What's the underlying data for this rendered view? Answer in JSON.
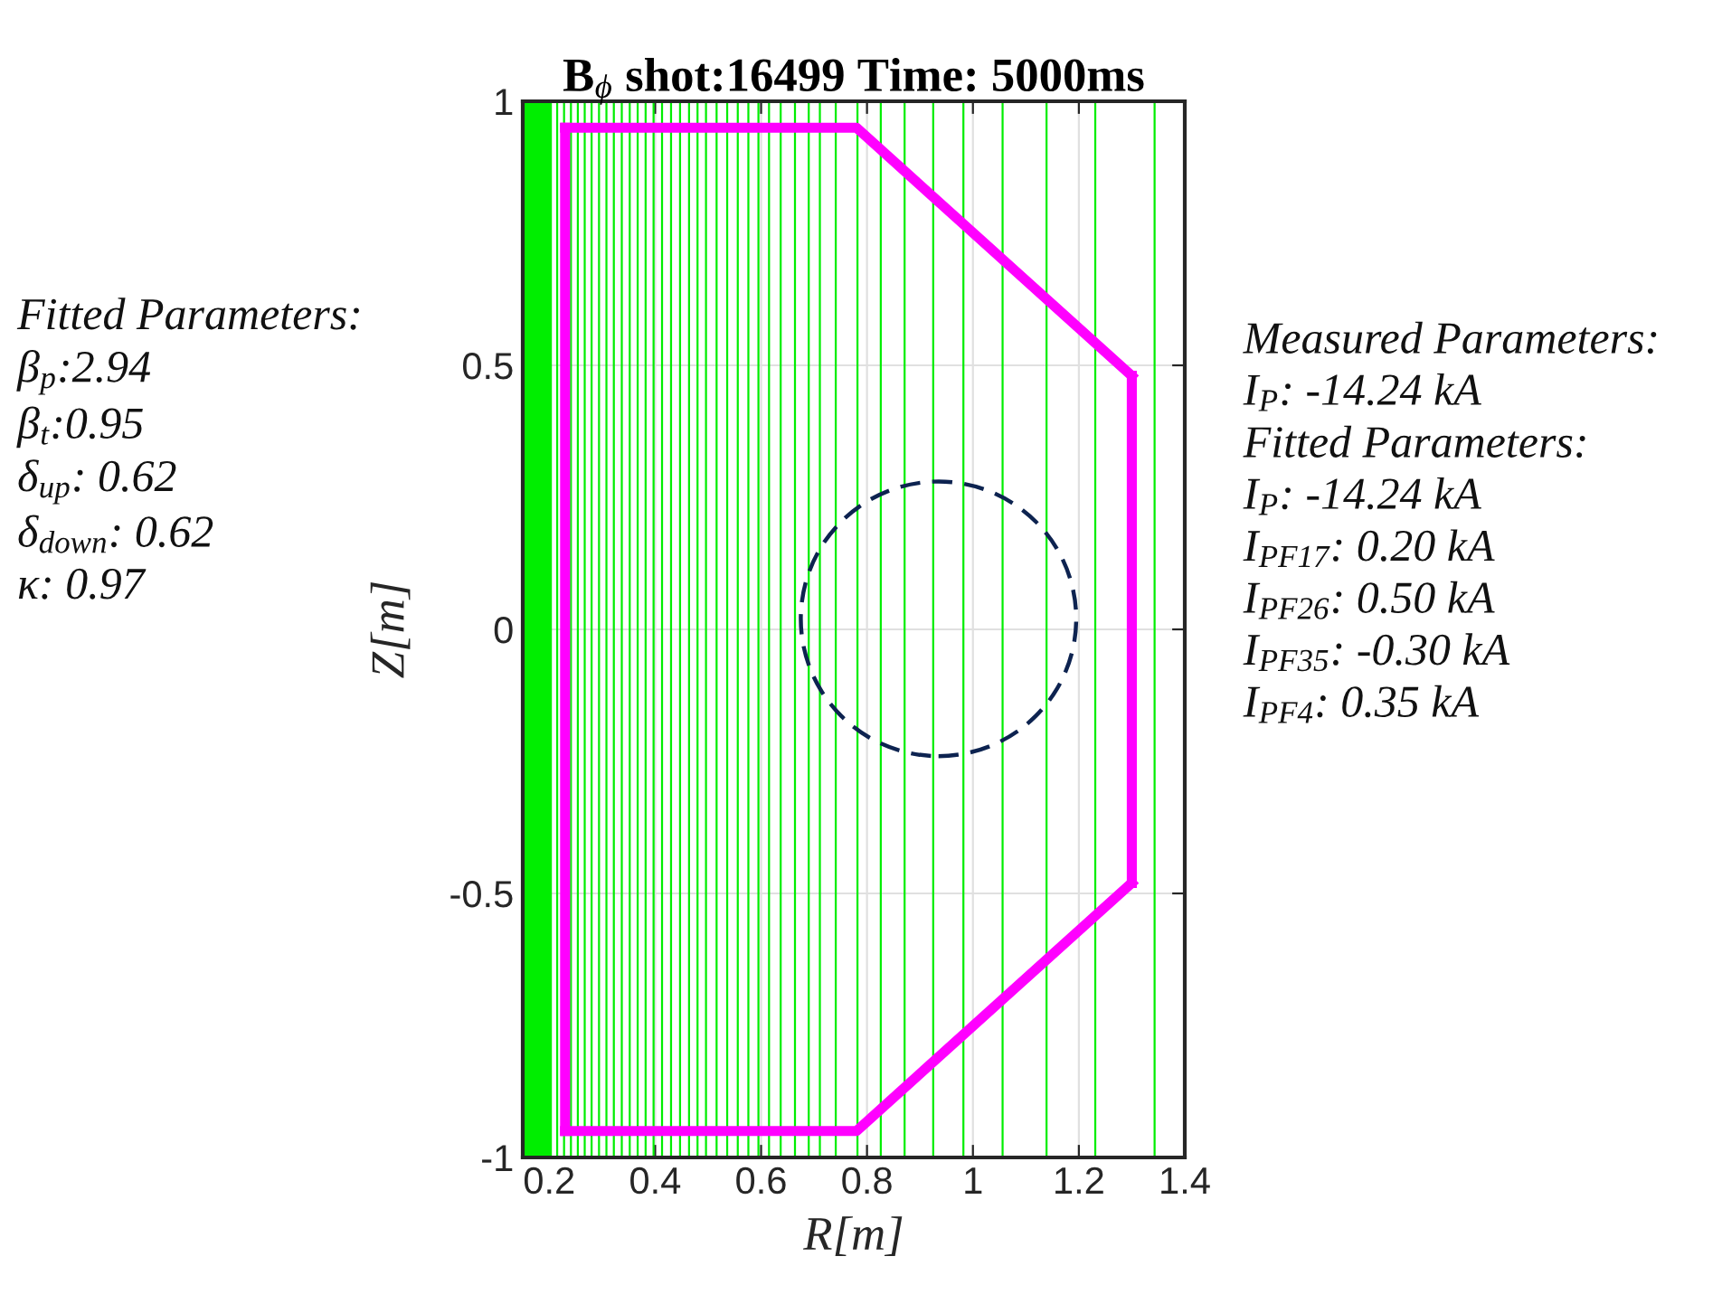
{
  "chart_data": {
    "type": "line",
    "title": "B$_{ϕ}$ shot:16499 Time: 5000ms",
    "xlabel": "R[m]",
    "ylabel": "Z[m]",
    "xlim": [
      0.15,
      1.4
    ],
    "ylim": [
      -1,
      1
    ],
    "xticks": [
      0.2,
      0.4,
      0.6,
      0.8,
      1,
      1.2,
      1.4
    ],
    "yticks": [
      -1,
      -0.5,
      0,
      0.5,
      1
    ],
    "grid": true,
    "marker": "none",
    "series": [
      {
        "color": "#ff00ff",
        "line_style": "solid",
        "x": [
          0.23,
          0.78,
          1.3
        ],
        "values": [
          0.95,
          0.95,
          0.48
        ]
      },
      {
        "color": "#ff00ff",
        "line_style": "solid",
        "x": [
          1.3,
          1.3
        ],
        "values": [
          0.48,
          -0.48
        ]
      },
      {
        "color": "#ff00ff",
        "line_style": "solid",
        "x": [
          0.23,
          0.78,
          1.3
        ],
        "values": [
          -0.95,
          -0.95,
          -0.48
        ]
      },
      {
        "color": "#ff00ff",
        "line_style": "solid",
        "x": [
          0.23,
          0.23
        ],
        "values": [
          -0.95,
          0.95
        ]
      }
    ],
    "ref_lines": [
      {
        "axis": "x",
        "value": 0.215,
        "color": "#00ee00"
      },
      {
        "axis": "x",
        "value": 0.228,
        "color": "#00ee00"
      },
      {
        "axis": "x",
        "value": 0.241,
        "color": "#00ee00"
      },
      {
        "axis": "x",
        "value": 0.254,
        "color": "#00ee00"
      },
      {
        "axis": "x",
        "value": 0.267,
        "color": "#00ee00"
      },
      {
        "axis": "x",
        "value": 0.28,
        "color": "#00ee00"
      },
      {
        "axis": "x",
        "value": 0.294,
        "color": "#00ee00"
      },
      {
        "axis": "x",
        "value": 0.308,
        "color": "#00ee00"
      },
      {
        "axis": "x",
        "value": 0.322,
        "color": "#00ee00"
      },
      {
        "axis": "x",
        "value": 0.337,
        "color": "#00ee00"
      },
      {
        "axis": "x",
        "value": 0.352,
        "color": "#00ee00"
      },
      {
        "axis": "x",
        "value": 0.367,
        "color": "#00ee00"
      },
      {
        "axis": "x",
        "value": 0.382,
        "color": "#00ee00"
      },
      {
        "axis": "x",
        "value": 0.397,
        "color": "#00ee00"
      },
      {
        "axis": "x",
        "value": 0.413,
        "color": "#00ee00"
      },
      {
        "axis": "x",
        "value": 0.43,
        "color": "#00ee00"
      },
      {
        "axis": "x",
        "value": 0.447,
        "color": "#00ee00"
      },
      {
        "axis": "x",
        "value": 0.464,
        "color": "#00ee00"
      },
      {
        "axis": "x",
        "value": 0.48,
        "color": "#00ee00"
      },
      {
        "axis": "x",
        "value": 0.496,
        "color": "#00ee00"
      },
      {
        "axis": "x",
        "value": 0.516,
        "color": "#00ee00"
      },
      {
        "axis": "x",
        "value": 0.536,
        "color": "#00ee00"
      },
      {
        "axis": "x",
        "value": 0.556,
        "color": "#00ee00"
      },
      {
        "axis": "x",
        "value": 0.576,
        "color": "#00ee00"
      },
      {
        "axis": "x",
        "value": 0.595,
        "color": "#00ee00"
      },
      {
        "axis": "x",
        "value": 0.615,
        "color": "#00ee00"
      },
      {
        "axis": "x",
        "value": 0.637,
        "color": "#00ee00"
      },
      {
        "axis": "x",
        "value": 0.664,
        "color": "#00ee00"
      },
      {
        "axis": "x",
        "value": 0.69,
        "color": "#00ee00"
      },
      {
        "axis": "x",
        "value": 0.711,
        "color": "#00ee00"
      },
      {
        "axis": "x",
        "value": 0.741,
        "color": "#00ee00"
      },
      {
        "axis": "x",
        "value": 0.782,
        "color": "#00ee00"
      },
      {
        "axis": "x",
        "value": 0.826,
        "color": "#00ee00"
      },
      {
        "axis": "x",
        "value": 0.871,
        "color": "#00ee00"
      },
      {
        "axis": "x",
        "value": 0.925,
        "color": "#00ee00"
      },
      {
        "axis": "x",
        "value": 0.982,
        "color": "#00ee00"
      },
      {
        "axis": "x",
        "value": 1.056,
        "color": "#00ee00"
      },
      {
        "axis": "x",
        "value": 1.139,
        "color": "#00ee00"
      },
      {
        "axis": "x",
        "value": 1.231,
        "color": "#00ee00"
      },
      {
        "axis": "x",
        "value": 1.343,
        "color": "#00ee00"
      }
    ],
    "bands": [
      {
        "axis": "x",
        "from": 0.15,
        "to": 0.205,
        "color": "#00ee00"
      }
    ],
    "annotations": [
      "Fitted Parameters:\nβ$_{p}$:2.94\nβ$_{t}$:0.95\nδ$_{up}$: 0.62\nδ$_{down}$: 0.62\nκ: 0.97",
      "Measured Parameters:\nI$_{P}$: -14.24 kA\nFitted Parameters:\nI$_{P}$: -14.24 kA\nI$_{PF17}$: 0.20 kA\nI$_{PF26}$: 0.50 kA\nI$_{PF35}$: -0.30 kA\nI$_{PF4}$: 0.35 kA"
    ]
  }
}
